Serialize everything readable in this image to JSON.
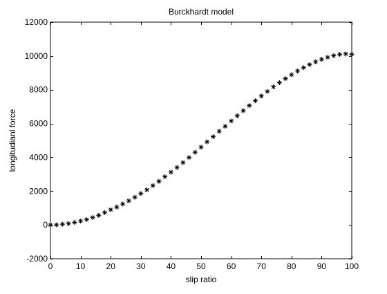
{
  "chart_data": {
    "type": "scatter",
    "title": "Burckhardt model",
    "xlabel": "slip ratio",
    "ylabel": "longitudianl force",
    "xlim": [
      0,
      100
    ],
    "ylim": [
      -2000,
      12000
    ],
    "xticks": [
      0,
      10,
      20,
      30,
      40,
      50,
      60,
      70,
      80,
      90,
      100
    ],
    "yticks": [
      -2000,
      0,
      2000,
      4000,
      6000,
      8000,
      10000,
      12000
    ],
    "xtick_labels": [
      "0",
      "10",
      "20",
      "30",
      "40",
      "50",
      "60",
      "70",
      "80",
      "90",
      "100"
    ],
    "ytick_labels": [
      "-2000",
      "0",
      "2000",
      "4000",
      "6000",
      "8000",
      "10000",
      "12000"
    ],
    "grid": false,
    "marker": "*",
    "marker_color": "#000000",
    "series": [
      {
        "x": [
          0,
          2,
          4,
          6,
          8,
          10,
          12,
          14,
          16,
          18,
          20,
          22,
          24,
          26,
          28,
          30,
          32,
          34,
          36,
          38,
          40,
          42,
          44,
          46,
          48,
          50,
          52,
          54,
          56,
          58,
          60,
          62,
          64,
          66,
          68,
          70,
          72,
          74,
          76,
          78,
          80,
          82,
          84,
          86,
          88,
          90,
          92,
          94,
          96,
          98,
          100
        ],
        "y": [
          0,
          5,
          40,
          80,
          150,
          230,
          320,
          440,
          570,
          730,
          900,
          1060,
          1240,
          1430,
          1640,
          1860,
          2080,
          2330,
          2580,
          2850,
          3120,
          3400,
          3690,
          3990,
          4300,
          4600,
          4920,
          5220,
          5540,
          5840,
          6150,
          6460,
          6760,
          7060,
          7350,
          7630,
          7900,
          8170,
          8420,
          8660,
          8890,
          9110,
          9310,
          9490,
          9650,
          9800,
          9920,
          10020,
          10090,
          10120,
          10100
        ]
      }
    ]
  }
}
